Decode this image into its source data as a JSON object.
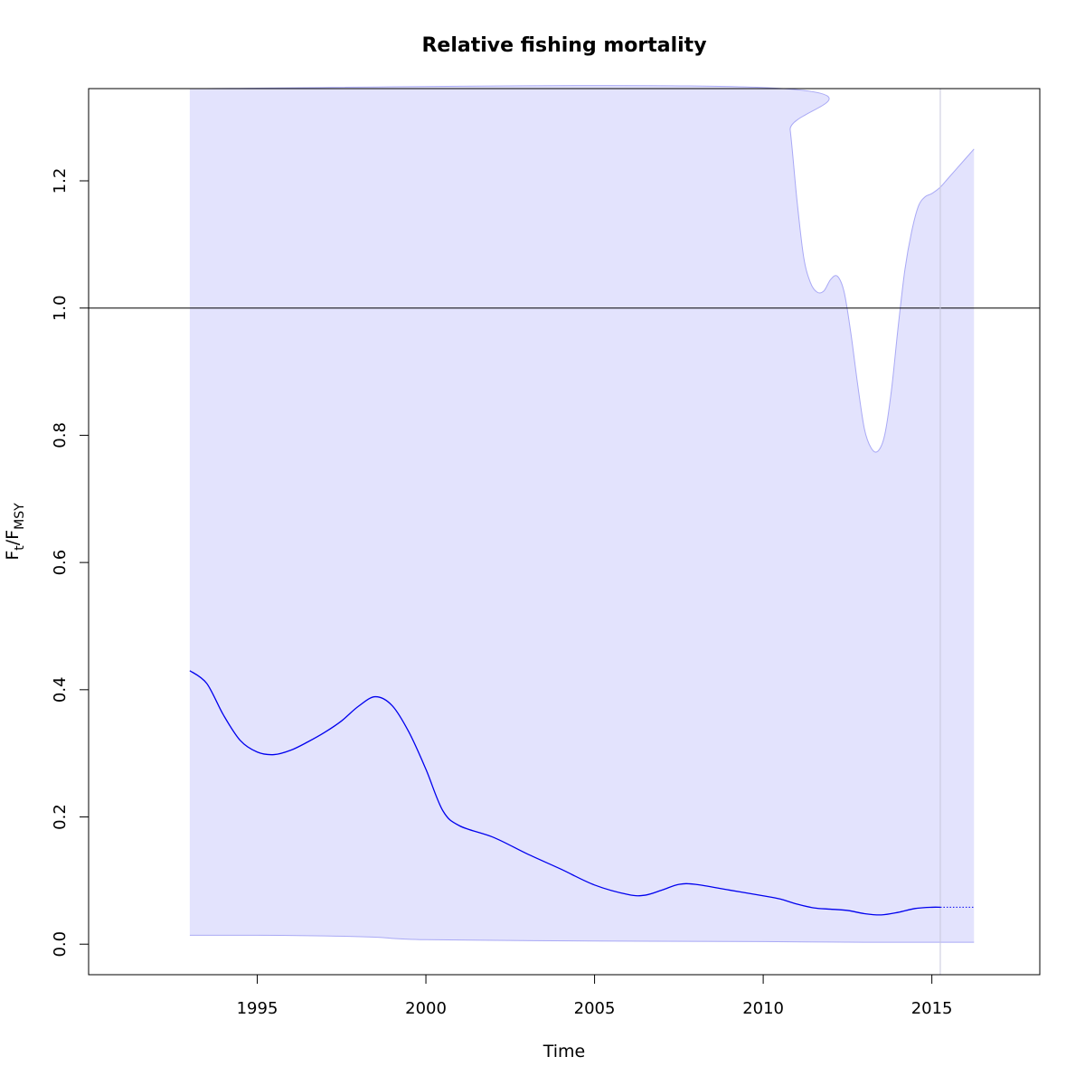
{
  "chart_data": {
    "type": "line",
    "title": "Relative fishing mortality",
    "xlabel": "Time",
    "ylabel": {
      "main": "F",
      "sub1": "t",
      "sep": "/F",
      "sub2": "MSY"
    },
    "xlim": [
      1990.0,
      2018.2
    ],
    "ylim": [
      -0.048,
      1.345
    ],
    "xticks": [
      1995,
      2000,
      2005,
      2010,
      2015
    ],
    "yticks": [
      0.0,
      0.2,
      0.4,
      0.6,
      0.8,
      1.0,
      1.2
    ],
    "reference_line": 1.0,
    "last_observation_x": 2015.25,
    "grid": false,
    "legend": "none",
    "colors": {
      "estimate": "#0000ee",
      "band_fill": "#e3e3fd",
      "band_edge": "#a9a9f5",
      "reference": "#000000",
      "vline": "#c8c8dc",
      "frame": "#000000"
    },
    "series": [
      {
        "role": "estimate",
        "x": [
          1993.0,
          1993.5,
          1994.0,
          1994.5,
          1995.0,
          1995.5,
          1996.0,
          1996.5,
          1997.0,
          1997.5,
          1998.0,
          1998.5,
          1999.0,
          1999.5,
          2000.0,
          2000.5,
          2001.0,
          2002.0,
          2003.0,
          2004.0,
          2005.0,
          2006.0,
          2006.5,
          2007.0,
          2007.5,
          2008.0,
          2009.0,
          2010.0,
          2010.5,
          2011.0,
          2011.5,
          2012.0,
          2012.5,
          2013.0,
          2013.5,
          2014.0,
          2014.5,
          2015.0,
          2015.25
        ],
        "y": [
          0.43,
          0.41,
          0.36,
          0.32,
          0.302,
          0.298,
          0.305,
          0.318,
          0.333,
          0.351,
          0.374,
          0.389,
          0.375,
          0.333,
          0.275,
          0.21,
          0.186,
          0.168,
          0.142,
          0.118,
          0.093,
          0.078,
          0.077,
          0.085,
          0.094,
          0.094,
          0.085,
          0.076,
          0.071,
          0.063,
          0.057,
          0.055,
          0.053,
          0.048,
          0.046,
          0.05,
          0.056,
          0.058,
          0.058
        ]
      },
      {
        "role": "forecast",
        "x": [
          2015.25,
          2016.25
        ],
        "y": [
          0.058,
          0.058
        ]
      },
      {
        "role": "band_upper",
        "x": [
          1993.0,
          2010.6,
          2010.8,
          2011.0,
          2011.2,
          2011.4,
          2011.6,
          2011.8,
          2012.0,
          2012.2,
          2012.4,
          2012.6,
          2012.8,
          2013.0,
          2013.2,
          2013.4,
          2013.6,
          2013.8,
          2014.0,
          2014.2,
          2014.4,
          2014.6,
          2014.8,
          2015.0,
          2015.25,
          2015.5,
          2016.0,
          2016.25
        ],
        "y": [
          1.345,
          1.345,
          1.28,
          1.17,
          1.08,
          1.04,
          1.025,
          1.027,
          1.045,
          1.05,
          1.025,
          0.96,
          0.88,
          0.81,
          0.78,
          0.775,
          0.8,
          0.87,
          0.97,
          1.06,
          1.12,
          1.16,
          1.175,
          1.18,
          1.19,
          1.205,
          1.235,
          1.25
        ]
      },
      {
        "role": "band_lower",
        "x": [
          1993.0,
          1995.0,
          1997.0,
          1998.5,
          2000.0,
          2005.0,
          2010.0,
          2013.0,
          2016.25
        ],
        "y": [
          0.014,
          0.014,
          0.013,
          0.011,
          0.007,
          0.005,
          0.004,
          0.003,
          0.003
        ]
      }
    ]
  }
}
